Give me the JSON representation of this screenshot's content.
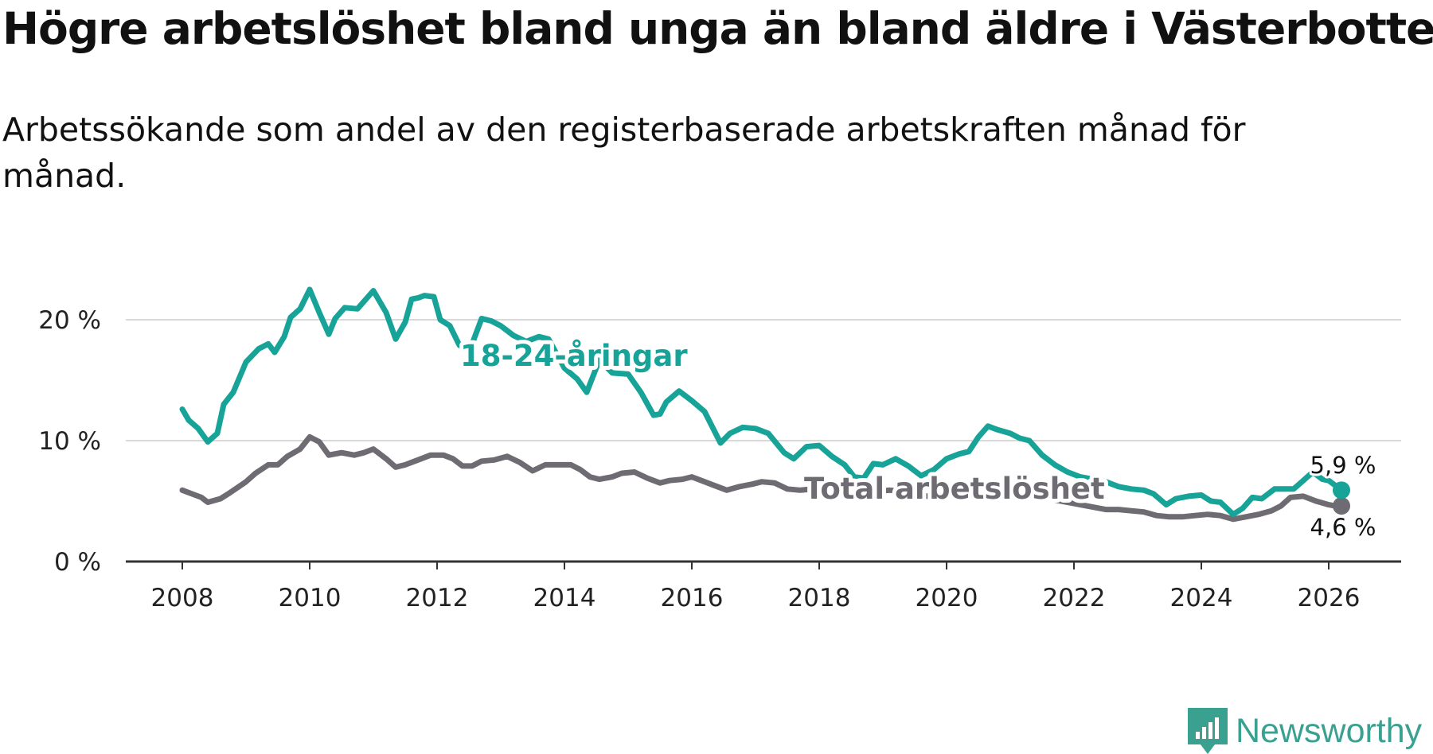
{
  "title": "Högre arbetslöshet bland unga än bland äldre i Västerbotten",
  "subtitle": "Arbetssökande som andel av den registerbaserade arbetskraften månad för månad.",
  "brand": {
    "name": "Newsworthy",
    "color": "#3aa191",
    "icon": "newsworthy-logo-icon"
  },
  "chart_data": {
    "type": "line",
    "title": "Högre arbetslöshet bland unga än bland äldre i Västerbotten",
    "xlabel": "",
    "ylabel": "",
    "xlim": [
      2007.1,
      2026.9
    ],
    "ylim": [
      0,
      20
    ],
    "grid": true,
    "x_ticks": [
      2008,
      2010,
      2012,
      2014,
      2016,
      2018,
      2020,
      2022,
      2024,
      2026
    ],
    "x_tick_labels": [
      "2008",
      "2010",
      "2012",
      "2014",
      "2016",
      "2018",
      "2020",
      "2022",
      "2024",
      "2026"
    ],
    "y_ticks": [
      0,
      10,
      20
    ],
    "y_tick_labels": [
      "0 %",
      "10 %",
      "20 %"
    ],
    "series": [
      {
        "name": "18-24-åringar",
        "color": "#17a398",
        "end_label": "5,9 %",
        "points": [
          [
            2008.0,
            12.6
          ],
          [
            2008.1,
            11.7
          ],
          [
            2008.25,
            11.0
          ],
          [
            2008.4,
            9.9
          ],
          [
            2008.55,
            10.6
          ],
          [
            2008.65,
            13.0
          ],
          [
            2008.8,
            14.0
          ],
          [
            2009.0,
            16.5
          ],
          [
            2009.2,
            17.6
          ],
          [
            2009.35,
            18.0
          ],
          [
            2009.45,
            17.3
          ],
          [
            2009.6,
            18.6
          ],
          [
            2009.7,
            20.2
          ],
          [
            2009.85,
            20.9
          ],
          [
            2010.0,
            22.5
          ],
          [
            2010.15,
            20.6
          ],
          [
            2010.3,
            18.8
          ],
          [
            2010.4,
            20.1
          ],
          [
            2010.55,
            21.0
          ],
          [
            2010.75,
            20.9
          ],
          [
            2011.0,
            22.4
          ],
          [
            2011.2,
            20.6
          ],
          [
            2011.35,
            18.4
          ],
          [
            2011.5,
            19.8
          ],
          [
            2011.6,
            21.7
          ],
          [
            2011.7,
            21.8
          ],
          [
            2011.8,
            22.0
          ],
          [
            2011.95,
            21.9
          ],
          [
            2012.05,
            20.0
          ],
          [
            2012.2,
            19.5
          ],
          [
            2012.35,
            17.9
          ],
          [
            2012.45,
            17.5
          ],
          [
            2012.55,
            18.0
          ],
          [
            2012.7,
            20.1
          ],
          [
            2012.85,
            19.9
          ],
          [
            2013.0,
            19.5
          ],
          [
            2013.2,
            18.7
          ],
          [
            2013.4,
            18.2
          ],
          [
            2013.6,
            18.6
          ],
          [
            2013.75,
            18.4
          ],
          [
            2014.0,
            16.0
          ],
          [
            2014.2,
            15.1
          ],
          [
            2014.35,
            14.0
          ],
          [
            2014.55,
            16.7
          ],
          [
            2014.75,
            15.6
          ],
          [
            2015.0,
            15.5
          ],
          [
            2015.2,
            14.0
          ],
          [
            2015.4,
            12.1
          ],
          [
            2015.5,
            12.2
          ],
          [
            2015.6,
            13.2
          ],
          [
            2015.8,
            14.1
          ],
          [
            2016.0,
            13.3
          ],
          [
            2016.2,
            12.4
          ],
          [
            2016.45,
            9.8
          ],
          [
            2016.6,
            10.6
          ],
          [
            2016.8,
            11.1
          ],
          [
            2017.0,
            11.0
          ],
          [
            2017.2,
            10.6
          ],
          [
            2017.45,
            9.0
          ],
          [
            2017.6,
            8.5
          ],
          [
            2017.8,
            9.5
          ],
          [
            2018.0,
            9.6
          ],
          [
            2018.2,
            8.7
          ],
          [
            2018.4,
            8.0
          ],
          [
            2018.55,
            7.0
          ],
          [
            2018.7,
            6.9
          ],
          [
            2018.85,
            8.1
          ],
          [
            2019.0,
            8.0
          ],
          [
            2019.2,
            8.5
          ],
          [
            2019.4,
            7.9
          ],
          [
            2019.6,
            7.1
          ],
          [
            2019.8,
            7.6
          ],
          [
            2020.0,
            8.5
          ],
          [
            2020.2,
            8.9
          ],
          [
            2020.35,
            9.1
          ],
          [
            2020.5,
            10.3
          ],
          [
            2020.65,
            11.2
          ],
          [
            2020.8,
            10.9
          ],
          [
            2021.0,
            10.6
          ],
          [
            2021.15,
            10.2
          ],
          [
            2021.3,
            10.0
          ],
          [
            2021.5,
            8.8
          ],
          [
            2021.7,
            8.0
          ],
          [
            2021.9,
            7.4
          ],
          [
            2022.1,
            7.0
          ],
          [
            2022.3,
            6.8
          ],
          [
            2022.5,
            6.6
          ],
          [
            2022.7,
            6.2
          ],
          [
            2022.9,
            6.0
          ],
          [
            2023.1,
            5.9
          ],
          [
            2023.25,
            5.6
          ],
          [
            2023.45,
            4.7
          ],
          [
            2023.6,
            5.2
          ],
          [
            2023.8,
            5.4
          ],
          [
            2024.0,
            5.5
          ],
          [
            2024.15,
            5.0
          ],
          [
            2024.3,
            4.9
          ],
          [
            2024.5,
            3.9
          ],
          [
            2024.65,
            4.4
          ],
          [
            2024.8,
            5.3
          ],
          [
            2024.95,
            5.2
          ],
          [
            2025.15,
            6.0
          ],
          [
            2025.3,
            6.0
          ],
          [
            2025.45,
            6.0
          ],
          [
            2025.6,
            6.7
          ],
          [
            2025.75,
            7.4
          ],
          [
            2025.9,
            6.8
          ],
          [
            2026.0,
            6.7
          ],
          [
            2026.1,
            6.3
          ],
          [
            2026.2,
            5.9
          ]
        ]
      },
      {
        "name": "Total arbetslöshet",
        "color": "#6e6c72",
        "end_label": "4,6 %",
        "points": [
          [
            2008.0,
            5.9
          ],
          [
            2008.15,
            5.6
          ],
          [
            2008.3,
            5.3
          ],
          [
            2008.4,
            4.9
          ],
          [
            2008.6,
            5.2
          ],
          [
            2008.75,
            5.7
          ],
          [
            2009.0,
            6.6
          ],
          [
            2009.15,
            7.3
          ],
          [
            2009.35,
            8.0
          ],
          [
            2009.5,
            8.0
          ],
          [
            2009.65,
            8.7
          ],
          [
            2009.85,
            9.3
          ],
          [
            2010.0,
            10.3
          ],
          [
            2010.15,
            9.9
          ],
          [
            2010.3,
            8.8
          ],
          [
            2010.5,
            9.0
          ],
          [
            2010.7,
            8.8
          ],
          [
            2010.85,
            9.0
          ],
          [
            2011.0,
            9.3
          ],
          [
            2011.2,
            8.5
          ],
          [
            2011.35,
            7.8
          ],
          [
            2011.5,
            8.0
          ],
          [
            2011.7,
            8.4
          ],
          [
            2011.9,
            8.8
          ],
          [
            2012.1,
            8.8
          ],
          [
            2012.25,
            8.5
          ],
          [
            2012.4,
            7.9
          ],
          [
            2012.55,
            7.9
          ],
          [
            2012.7,
            8.3
          ],
          [
            2012.9,
            8.4
          ],
          [
            2013.1,
            8.7
          ],
          [
            2013.3,
            8.2
          ],
          [
            2013.5,
            7.5
          ],
          [
            2013.7,
            8.0
          ],
          [
            2013.9,
            8.0
          ],
          [
            2014.1,
            8.0
          ],
          [
            2014.25,
            7.6
          ],
          [
            2014.4,
            7.0
          ],
          [
            2014.55,
            6.8
          ],
          [
            2014.75,
            7.0
          ],
          [
            2014.9,
            7.3
          ],
          [
            2015.1,
            7.4
          ],
          [
            2015.3,
            6.9
          ],
          [
            2015.5,
            6.5
          ],
          [
            2015.65,
            6.7
          ],
          [
            2015.85,
            6.8
          ],
          [
            2016.0,
            7.0
          ],
          [
            2016.2,
            6.6
          ],
          [
            2016.4,
            6.2
          ],
          [
            2016.55,
            5.9
          ],
          [
            2016.75,
            6.2
          ],
          [
            2016.95,
            6.4
          ],
          [
            2017.1,
            6.6
          ],
          [
            2017.3,
            6.5
          ],
          [
            2017.5,
            6.0
          ],
          [
            2017.7,
            5.9
          ],
          [
            2017.9,
            6.0
          ],
          [
            2018.1,
            6.1
          ],
          [
            2018.3,
            5.9
          ],
          [
            2018.5,
            5.7
          ],
          [
            2018.7,
            5.6
          ],
          [
            2018.9,
            5.8
          ],
          [
            2019.1,
            5.9
          ],
          [
            2019.3,
            5.8
          ],
          [
            2019.5,
            5.6
          ],
          [
            2019.7,
            5.4
          ],
          [
            2019.9,
            5.6
          ],
          [
            2020.1,
            5.9
          ],
          [
            2020.3,
            6.1
          ],
          [
            2020.5,
            6.4
          ],
          [
            2020.7,
            6.6
          ],
          [
            2020.9,
            6.4
          ],
          [
            2021.1,
            6.1
          ],
          [
            2021.3,
            5.8
          ],
          [
            2021.5,
            5.5
          ],
          [
            2021.7,
            5.1
          ],
          [
            2021.9,
            4.9
          ],
          [
            2022.1,
            4.7
          ],
          [
            2022.3,
            4.5
          ],
          [
            2022.5,
            4.3
          ],
          [
            2022.7,
            4.3
          ],
          [
            2022.9,
            4.2
          ],
          [
            2023.1,
            4.1
          ],
          [
            2023.3,
            3.8
          ],
          [
            2023.5,
            3.7
          ],
          [
            2023.7,
            3.7
          ],
          [
            2023.9,
            3.8
          ],
          [
            2024.1,
            3.9
          ],
          [
            2024.3,
            3.8
          ],
          [
            2024.5,
            3.5
          ],
          [
            2024.7,
            3.7
          ],
          [
            2024.9,
            3.9
          ],
          [
            2025.1,
            4.2
          ],
          [
            2025.25,
            4.6
          ],
          [
            2025.4,
            5.3
          ],
          [
            2025.6,
            5.4
          ],
          [
            2025.8,
            5.0
          ],
          [
            2026.0,
            4.7
          ],
          [
            2026.1,
            4.6
          ],
          [
            2026.2,
            4.6
          ]
        ]
      }
    ]
  }
}
